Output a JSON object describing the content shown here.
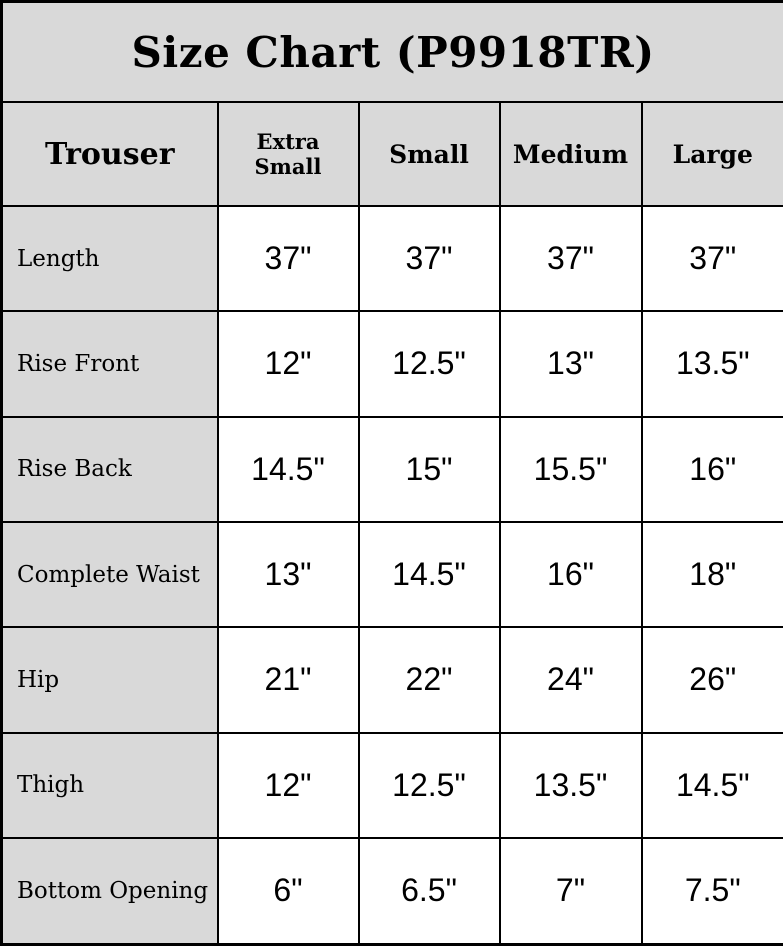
{
  "title": "Size Chart (P9918TR)",
  "table": {
    "corner_label": "Trouser",
    "columns": [
      "Extra Small",
      "Small",
      "Medium",
      "Large"
    ],
    "rows": [
      {
        "label": "Length",
        "values": [
          "37\"",
          "37\"",
          "37\"",
          "37\""
        ]
      },
      {
        "label": "Rise Front",
        "values": [
          "12\"",
          "12.5\"",
          "13\"",
          "13.5\""
        ]
      },
      {
        "label": "Rise Back",
        "values": [
          "14.5\"",
          "15\"",
          "15.5\"",
          "16\""
        ]
      },
      {
        "label": "Complete Waist",
        "values": [
          "13\"",
          "14.5\"",
          "16\"",
          "18\""
        ]
      },
      {
        "label": "Hip",
        "values": [
          "21\"",
          "22\"",
          "24\"",
          "26\""
        ]
      },
      {
        "label": "Thigh",
        "values": [
          "12\"",
          "12.5\"",
          "13.5\"",
          "14.5\""
        ]
      },
      {
        "label": "Bottom Opening",
        "values": [
          "6\"",
          "6.5\"",
          "7\"",
          "7.5\""
        ]
      }
    ]
  },
  "colors": {
    "header_bg": "#d9d9d9",
    "cell_bg": "#ffffff",
    "border": "#000000",
    "text": "#000000"
  },
  "chart_data": {
    "type": "table",
    "title": "Size Chart (P9918TR)",
    "row_header": "Trouser",
    "categories": [
      "Extra Small",
      "Small",
      "Medium",
      "Large"
    ],
    "series": [
      {
        "name": "Length",
        "values": [
          37,
          37,
          37,
          37
        ],
        "unit": "inches"
      },
      {
        "name": "Rise Front",
        "values": [
          12,
          12.5,
          13,
          13.5
        ],
        "unit": "inches"
      },
      {
        "name": "Rise Back",
        "values": [
          14.5,
          15,
          15.5,
          16
        ],
        "unit": "inches"
      },
      {
        "name": "Complete Waist",
        "values": [
          13,
          14.5,
          16,
          18
        ],
        "unit": "inches"
      },
      {
        "name": "Hip",
        "values": [
          21,
          22,
          24,
          26
        ],
        "unit": "inches"
      },
      {
        "name": "Thigh",
        "values": [
          12,
          12.5,
          13.5,
          14.5
        ],
        "unit": "inches"
      },
      {
        "name": "Bottom Opening",
        "values": [
          6,
          6.5,
          7,
          7.5
        ],
        "unit": "inches"
      }
    ],
    "legend_position": "none",
    "grid": true
  }
}
